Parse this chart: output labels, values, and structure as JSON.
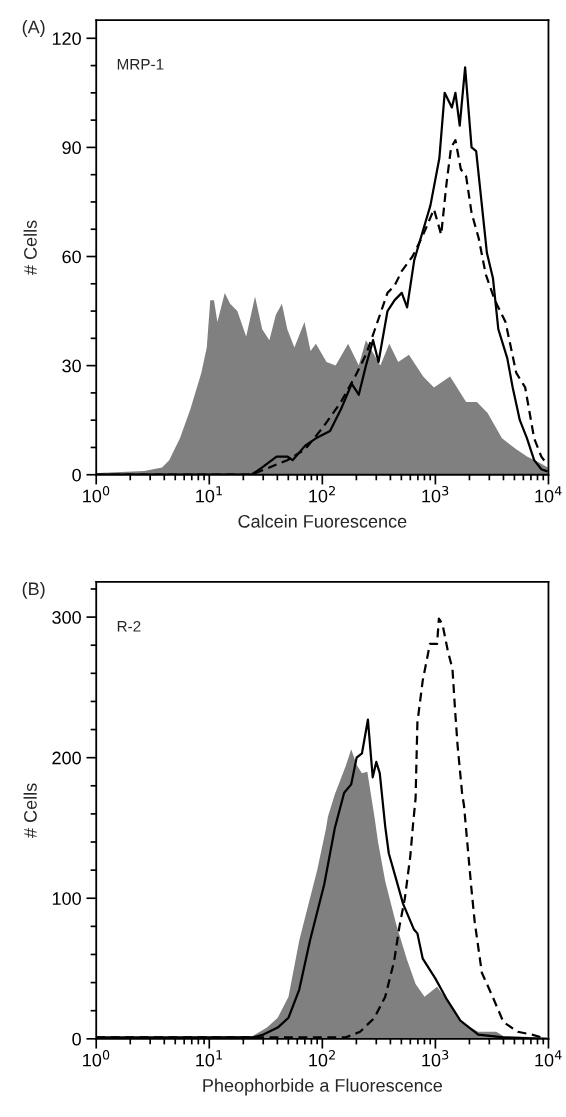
{
  "chart_data": [
    {
      "type": "area",
      "title": "(A)",
      "xlabel": "Calcein Fuorescence",
      "ylabel": "# Cells",
      "annotations": [
        "MRP-1"
      ],
      "log": "x",
      "xlim": [
        1,
        10000
      ],
      "ylim": [
        0,
        125
      ],
      "xticks": [
        {
          "value": 1,
          "label": "10$^{0}$"
        },
        {
          "value": 10,
          "label": "10$^{1}$"
        },
        {
          "value": 100,
          "label": "10$^{2}$"
        },
        {
          "value": 1000,
          "label": "10$^{3}$"
        },
        {
          "value": 10000,
          "label": "10$^{4}$"
        }
      ],
      "yticks": [
        0,
        30,
        60,
        90,
        120
      ],
      "grid": false,
      "legend": false,
      "series": [
        {
          "type": "area",
          "color": "#808080",
          "x": [
            1.03,
            2.66,
            3.82,
            4.42,
            5.5,
            6.8,
            8.5,
            9.5,
            10.2,
            11.0,
            11.8,
            13.7,
            15.3,
            17.7,
            21.2,
            25.4,
            29.4,
            34.0,
            38.8,
            43.9,
            49.0,
            56.6,
            69.5,
            78.7,
            87.7,
            109,
            131,
            169,
            210,
            243,
            326,
            391,
            469,
            583,
            780,
            971,
            1349,
            1871,
            2328,
            2897,
            3880,
            5190,
            6460,
            8650,
            9860
          ],
          "values": [
            0.5,
            1,
            2,
            4,
            10,
            18,
            28,
            35,
            48,
            48,
            42,
            50,
            47,
            45,
            38,
            49,
            40,
            37,
            44,
            47,
            40,
            35,
            42,
            34,
            36,
            31,
            30,
            36,
            30,
            37,
            30,
            36,
            31,
            33,
            27,
            24,
            27,
            20,
            20,
            17,
            10,
            7,
            5,
            3,
            2
          ]
        },
        {
          "type": "line",
          "line_style": "solid",
          "color": "#000000",
          "x": [
            1,
            23.6,
            29.4,
            39.4,
            49.0,
            54.6,
            70.5,
            87.7,
            117,
            146,
            182,
            210,
            243,
            281,
            314,
            377,
            436,
            504,
            562,
            650,
            809,
            903,
            1084,
            1208,
            1399,
            1504,
            1641,
            1832,
            2089,
            2294,
            2855,
            3231,
            3603,
            4325,
            4827,
            5582,
            6460,
            7470,
            8650,
            9640
          ],
          "values": [
            0,
            0,
            2,
            5,
            5,
            4,
            8,
            10,
            12,
            18,
            25,
            22,
            30,
            37,
            31,
            45,
            48,
            50,
            46,
            59,
            69,
            74,
            87,
            105,
            101,
            105,
            96,
            112,
            90,
            89,
            61,
            54,
            40,
            32,
            24,
            15,
            10,
            4,
            1.5,
            1
          ]
        },
        {
          "type": "line",
          "line_style": "dashed",
          "color": "#000000",
          "x": [
            1,
            23.6,
            34.0,
            49.0,
            70.5,
            101,
            146,
            195,
            243,
            292,
            377,
            436,
            504,
            627,
            780,
            971,
            1125,
            1253,
            1377,
            1504,
            1679,
            1871,
            2089,
            2416,
            2793,
            3352,
            4170,
            5190,
            6224,
            7470,
            8650,
            9640
          ],
          "values": [
            0,
            0,
            2,
            4,
            7,
            13,
            20,
            27,
            33,
            40,
            50,
            52,
            56,
            60,
            66,
            73,
            66,
            80,
            90,
            92,
            84,
            82,
            72,
            65,
            55,
            48,
            42,
            28,
            24,
            10,
            5,
            3
          ]
        }
      ]
    },
    {
      "type": "area",
      "title": "(B)",
      "xlabel": "Pheophorbide a Fluorescence",
      "ylabel": "# Cells",
      "annotations": [
        "R-2"
      ],
      "log": "x",
      "xlim": [
        1,
        10000
      ],
      "ylim": [
        0,
        325
      ],
      "xticks": [
        {
          "value": 1,
          "label": "10$^{0}$"
        },
        {
          "value": 10,
          "label": "10$^{1}$"
        },
        {
          "value": 100,
          "label": "10$^{2}$"
        },
        {
          "value": 1000,
          "label": "10$^{3}$"
        },
        {
          "value": 10000,
          "label": "10$^{4}$"
        }
      ],
      "yticks": [
        0,
        100,
        200,
        300
      ],
      "grid": false,
      "legend": false,
      "series": [
        {
          "type": "area",
          "color": "#808080",
          "x": [
            1,
            2.35,
            24.2,
            32.4,
            40.3,
            50.2,
            62.5,
            72.3,
            90,
            108,
            112,
            129,
            161,
            180,
            201,
            224,
            250,
            289,
            311,
            360,
            448,
            557,
            668,
            802,
            1035,
            1336,
            1663,
            2394,
            3451,
            3990,
            9570
          ],
          "values": [
            0,
            1,
            2,
            8,
            15,
            30,
            70,
            90,
            120,
            150,
            158,
            174,
            194,
            206,
            195,
            189,
            190,
            158,
            140,
            112,
            82,
            57,
            39,
            30,
            37,
            25,
            12,
            5,
            5,
            2,
            1
          ]
        },
        {
          "type": "line",
          "line_style": "solid",
          "color": "#000000",
          "x": [
            1,
            24.2,
            30.1,
            40.3,
            50.2,
            62.5,
            77.8,
            104,
            129,
            156,
            180,
            201,
            224,
            253,
            279,
            300,
            322,
            360,
            387,
            518,
            644,
            693,
            773,
            998,
            1242,
            1663,
            2394,
            3990,
            9570
          ],
          "values": [
            1,
            1,
            3,
            8,
            15,
            35,
            70,
            110,
            150,
            175,
            181,
            200,
            203,
            227,
            186,
            197,
            189,
            151,
            132,
            96,
            78,
            75,
            57,
            43,
            29,
            13,
            3,
            1,
            0
          ]
        },
        {
          "type": "line",
          "line_style": "dashed",
          "color": "#000000",
          "x": [
            1,
            161,
            216,
            289,
            360,
            431,
            481,
            537,
            600,
            635,
            668,
            693,
            773,
            895,
            1035,
            1074,
            1155,
            1288,
            1416,
            1490,
            1570,
            1726,
            1790,
            2070,
            2228,
            2576,
            3206,
            3990,
            5343,
            7145,
            9570
          ],
          "values": [
            1,
            1,
            5,
            15,
            30,
            55,
            80,
            100,
            130,
            153,
            171,
            225,
            255,
            281,
            281,
            299,
            295,
            276,
            263,
            235,
            209,
            174,
            166,
            109,
            83,
            47,
            30,
            12,
            5,
            3,
            0
          ]
        }
      ]
    }
  ]
}
